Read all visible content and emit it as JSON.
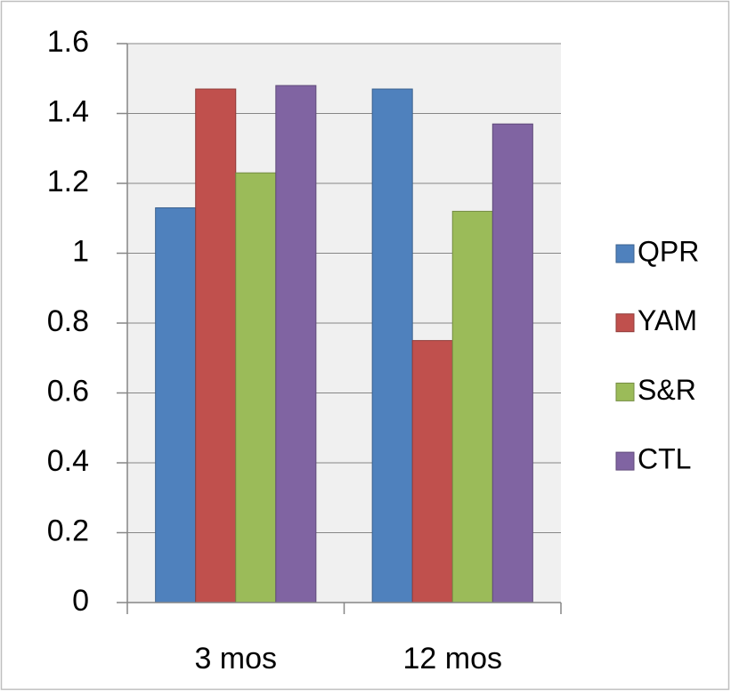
{
  "chart_data": {
    "type": "bar",
    "categories": [
      "3 mos",
      "12 mos"
    ],
    "series": [
      {
        "name": "QPR",
        "color": "#4f81bd",
        "values": [
          1.13,
          1.47
        ]
      },
      {
        "name": "YAM",
        "color": "#c0504d",
        "values": [
          1.47,
          0.75
        ]
      },
      {
        "name": "S&R",
        "color": "#9bbb59",
        "values": [
          1.23,
          1.12
        ]
      },
      {
        "name": "CTL",
        "color": "#8064a2",
        "values": [
          1.48,
          1.37
        ]
      }
    ],
    "ylim": [
      0,
      1.6
    ],
    "yticks": [
      0,
      0.2,
      0.4,
      0.6,
      0.8,
      1,
      1.2,
      1.4,
      1.6
    ],
    "grid": true,
    "legend": "right"
  }
}
